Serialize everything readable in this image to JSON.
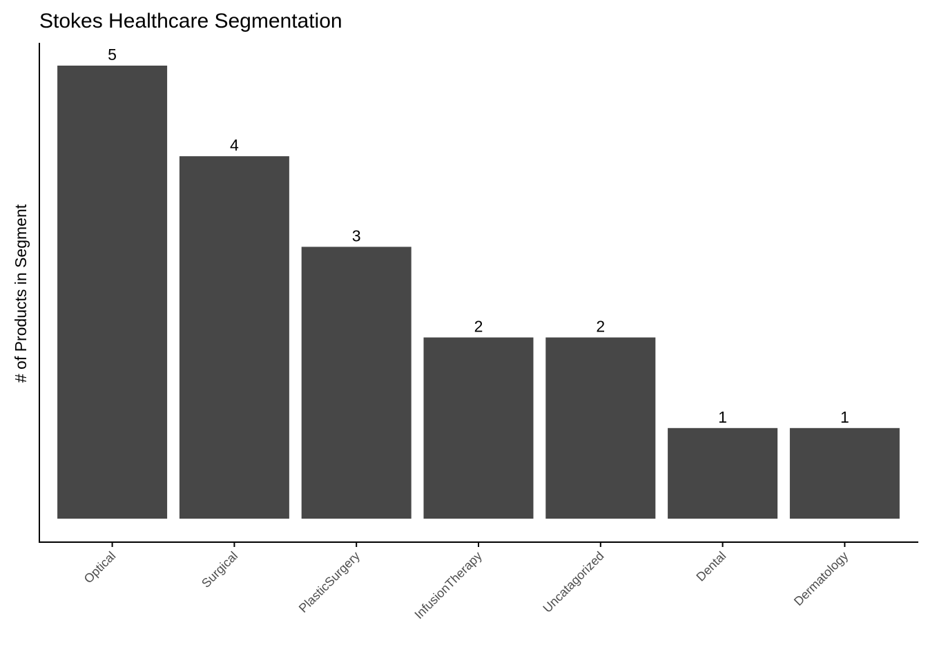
{
  "chart_data": {
    "type": "bar",
    "title": "Stokes Healthcare Segmentation",
    "xlabel": "",
    "ylabel": "# of Products in Segment",
    "categories": [
      "Optical",
      "Surgical",
      "PlasticSurgery",
      "InfusionTherapy",
      "Uncatagorized",
      "Dental",
      "Dermatology"
    ],
    "values": [
      5,
      4,
      3,
      2,
      2,
      1,
      1
    ],
    "data_labels": [
      "5",
      "4",
      "3",
      "2",
      "2",
      "1",
      "1"
    ],
    "ylim": [
      0,
      5
    ],
    "y_ticks_shown": false,
    "grid": false,
    "legend": "none",
    "bar_color": "#474747"
  }
}
